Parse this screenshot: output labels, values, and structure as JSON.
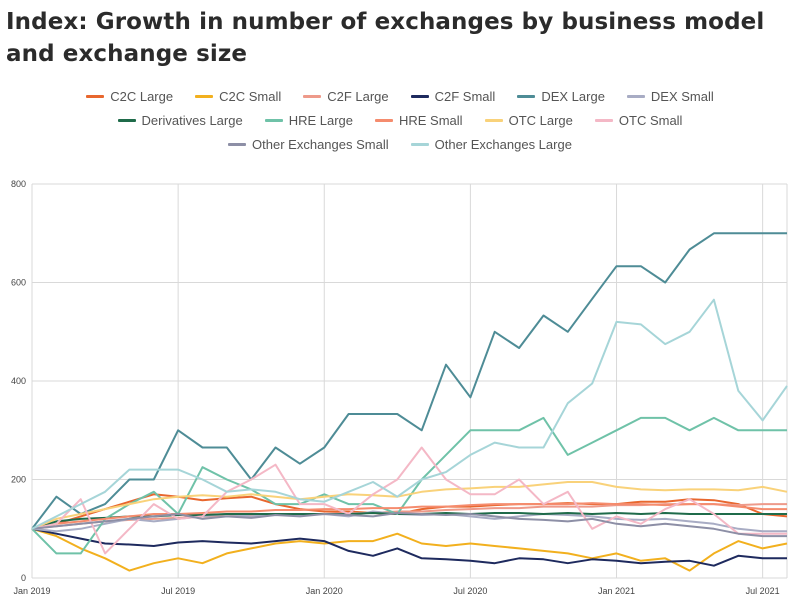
{
  "title": "Index: Growth in number of exchanges by business model and exchange size",
  "chart_data": {
    "type": "line",
    "title": "Index: Growth in number of exchanges by business model and exchange size",
    "xlabel": "",
    "ylabel": "",
    "x": [
      "2019-01",
      "2019-02",
      "2019-03",
      "2019-04",
      "2019-05",
      "2019-06",
      "2019-07",
      "2019-08",
      "2019-09",
      "2019-10",
      "2019-11",
      "2019-12",
      "2020-01",
      "2020-02",
      "2020-03",
      "2020-04",
      "2020-05",
      "2020-06",
      "2020-07",
      "2020-08",
      "2020-09",
      "2020-10",
      "2020-11",
      "2020-12",
      "2021-01",
      "2021-02",
      "2021-03",
      "2021-04",
      "2021-05",
      "2021-06",
      "2021-07",
      "2021-08"
    ],
    "x_tick_labels": [
      {
        "x": "2019-01",
        "label": "Jan 2019"
      },
      {
        "x": "2019-07",
        "label": "Jul 2019"
      },
      {
        "x": "2020-01",
        "label": "Jan 2020"
      },
      {
        "x": "2020-07",
        "label": "Jul 2020"
      },
      {
        "x": "2021-01",
        "label": "Jan 2021"
      },
      {
        "x": "2021-07",
        "label": "Jul 2021"
      }
    ],
    "y_ticks": [
      0,
      200,
      400,
      600,
      800
    ],
    "ylim": [
      0,
      800
    ],
    "grid": true,
    "legend_position": "top",
    "series": [
      {
        "name": "C2C Large",
        "color": "#e8672e",
        "values": [
          100,
          110,
          125,
          140,
          155,
          170,
          165,
          158,
          162,
          165,
          150,
          140,
          135,
          135,
          132,
          130,
          140,
          145,
          145,
          148,
          150,
          150,
          152,
          150,
          150,
          155,
          155,
          160,
          158,
          150,
          130,
          125
        ]
      },
      {
        "name": "C2C Small",
        "color": "#f2b01e",
        "values": [
          100,
          85,
          60,
          40,
          15,
          30,
          40,
          30,
          50,
          60,
          70,
          75,
          70,
          75,
          75,
          90,
          70,
          65,
          70,
          65,
          60,
          55,
          50,
          40,
          50,
          35,
          40,
          15,
          50,
          75,
          60,
          70
        ]
      },
      {
        "name": "C2F Large",
        "color": "#ee9a8a",
        "values": [
          100,
          105,
          110,
          115,
          118,
          120,
          122,
          125,
          125,
          128,
          128,
          130,
          130,
          132,
          132,
          135,
          135,
          138,
          140,
          142,
          142,
          145,
          145,
          145,
          148,
          148,
          150,
          150,
          150,
          148,
          150,
          150
        ]
      },
      {
        "name": "C2F Small",
        "color": "#1e2a5e",
        "values": [
          100,
          90,
          80,
          70,
          68,
          65,
          72,
          75,
          72,
          70,
          75,
          80,
          75,
          55,
          45,
          60,
          40,
          38,
          35,
          30,
          40,
          38,
          30,
          38,
          35,
          30,
          33,
          35,
          25,
          45,
          40,
          40
        ]
      },
      {
        "name": "DEX Large",
        "color": "#4e8c96",
        "values": [
          100,
          165,
          130,
          150,
          200,
          200,
          300,
          265,
          265,
          200,
          265,
          232,
          265,
          333,
          333,
          333,
          300,
          433,
          367,
          500,
          467,
          533,
          500,
          567,
          633,
          633,
          600,
          667,
          700,
          700,
          700,
          700
        ]
      },
      {
        "name": "DEX Small",
        "color": "#a8acc4",
        "values": [
          100,
          95,
          100,
          110,
          120,
          115,
          120,
          125,
          130,
          125,
          130,
          128,
          130,
          125,
          135,
          130,
          128,
          130,
          125,
          120,
          125,
          130,
          128,
          125,
          120,
          118,
          120,
          115,
          110,
          100,
          95,
          95
        ]
      },
      {
        "name": "Derivatives Large",
        "color": "#1f6b4a",
        "values": [
          100,
          115,
          120,
          122,
          125,
          125,
          128,
          128,
          130,
          130,
          130,
          130,
          130,
          130,
          132,
          130,
          130,
          132,
          130,
          132,
          132,
          130,
          132,
          130,
          132,
          130,
          132,
          130,
          130,
          130,
          130,
          130
        ]
      },
      {
        "name": "HRE Large",
        "color": "#6fc2a8",
        "values": [
          100,
          50,
          50,
          120,
          150,
          175,
          130,
          225,
          200,
          180,
          150,
          150,
          170,
          150,
          150,
          130,
          200,
          250,
          300,
          300,
          300,
          325,
          250,
          275,
          300,
          325,
          325,
          300,
          325,
          300,
          300,
          300
        ]
      },
      {
        "name": "HRE Small",
        "color": "#f58c6e",
        "values": [
          100,
          110,
          115,
          120,
          125,
          130,
          130,
          132,
          135,
          135,
          138,
          138,
          140,
          140,
          142,
          142,
          145,
          145,
          148,
          150,
          150,
          150,
          150,
          152,
          150,
          150,
          148,
          150,
          150,
          145,
          140,
          140
        ]
      },
      {
        "name": "OTC Large",
        "color": "#f9d27a",
        "values": [
          100,
          120,
          130,
          140,
          150,
          160,
          165,
          168,
          165,
          170,
          165,
          160,
          165,
          170,
          168,
          165,
          175,
          180,
          182,
          185,
          185,
          190,
          195,
          195,
          185,
          180,
          178,
          180,
          180,
          178,
          185,
          175
        ]
      },
      {
        "name": "OTC Small",
        "color": "#f4b8c6",
        "values": [
          100,
          110,
          160,
          50,
          100,
          150,
          120,
          125,
          175,
          200,
          230,
          150,
          150,
          130,
          170,
          200,
          265,
          200,
          170,
          170,
          200,
          150,
          175,
          100,
          125,
          110,
          140,
          160,
          130,
          90,
          90,
          90
        ]
      },
      {
        "name": "Other Exchanges Small",
        "color": "#8d8fa6",
        "values": [
          100,
          105,
          110,
          115,
          120,
          125,
          130,
          120,
          125,
          122,
          128,
          125,
          130,
          128,
          125,
          132,
          130,
          128,
          130,
          125,
          120,
          118,
          115,
          120,
          110,
          105,
          110,
          105,
          100,
          90,
          85,
          85
        ]
      },
      {
        "name": "Other Exchanges Large",
        "color": "#a6d5d8",
        "values": [
          100,
          125,
          150,
          175,
          220,
          220,
          220,
          200,
          175,
          180,
          175,
          160,
          155,
          175,
          195,
          165,
          200,
          215,
          250,
          275,
          265,
          265,
          355,
          395,
          520,
          515,
          475,
          500,
          565,
          380,
          320,
          390
        ]
      }
    ]
  }
}
